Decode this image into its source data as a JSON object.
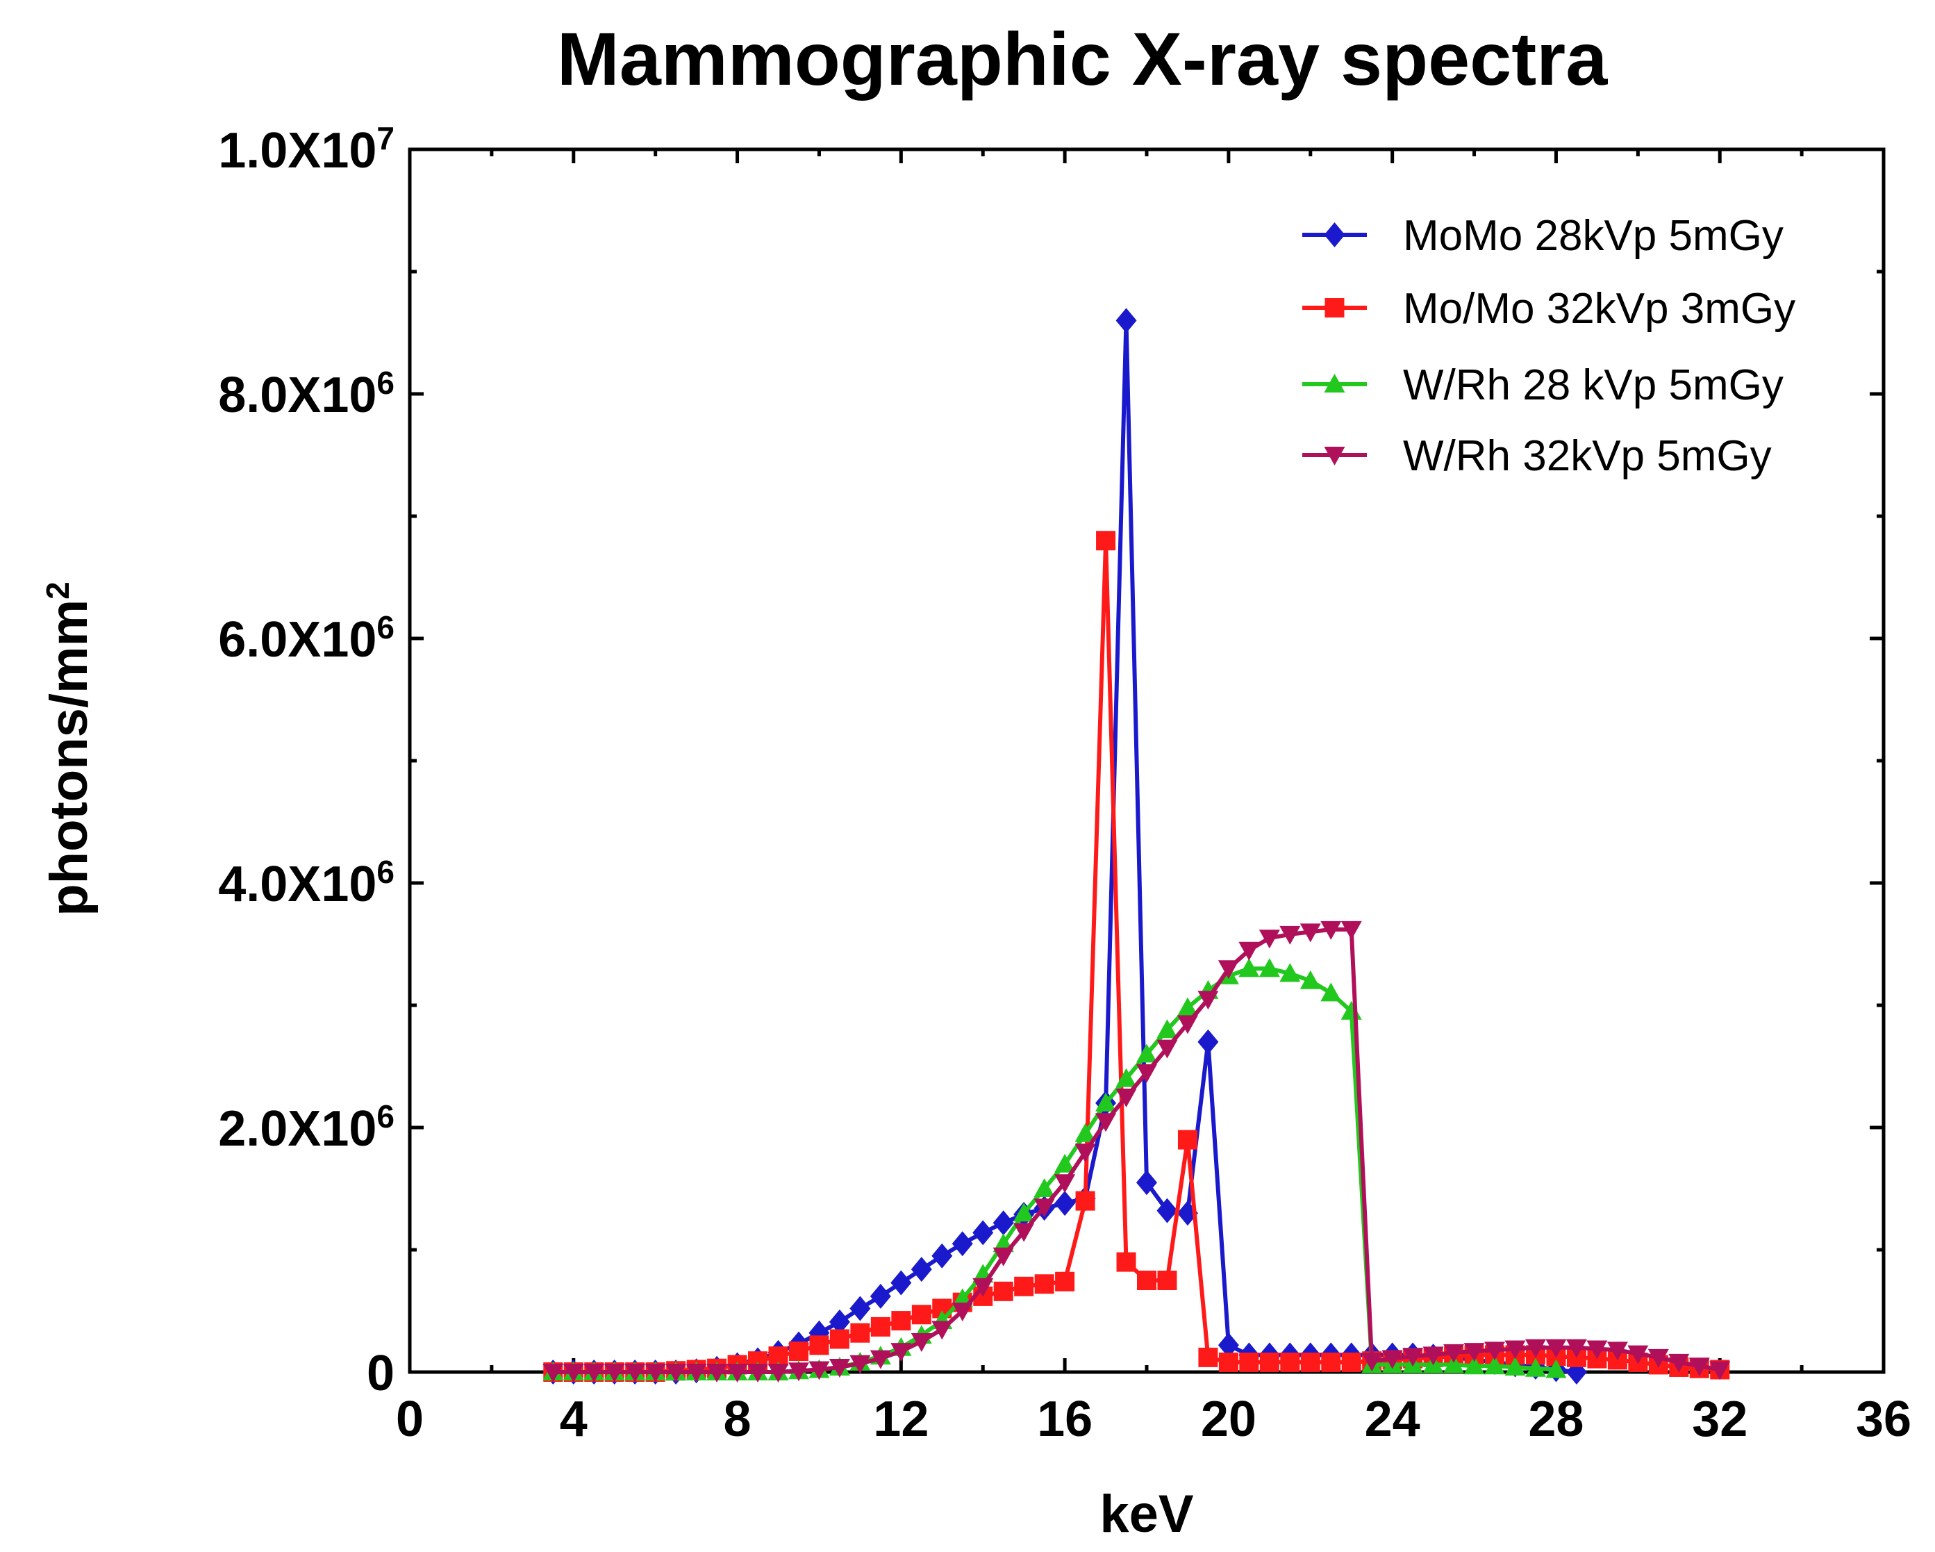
{
  "chart_data": {
    "type": "line",
    "title": "Mammographic X-ray spectra",
    "xlabel": "keV",
    "ylabel": "photons/mm",
    "ylabel_exp": "2",
    "xlim": [
      0,
      36
    ],
    "ylim": [
      0,
      10000000
    ],
    "grid": false,
    "legend_position": "top-right",
    "x_ticks": [
      {
        "value": 0,
        "label": "0"
      },
      {
        "value": 4,
        "label": "4"
      },
      {
        "value": 8,
        "label": "8"
      },
      {
        "value": 12,
        "label": "12"
      },
      {
        "value": 16,
        "label": "16"
      },
      {
        "value": 20,
        "label": "20"
      },
      {
        "value": 24,
        "label": "24"
      },
      {
        "value": 28,
        "label": "28"
      },
      {
        "value": 32,
        "label": "32"
      },
      {
        "value": 36,
        "label": "36"
      }
    ],
    "y_ticks": [
      {
        "value": 0,
        "mant": "0",
        "exp": ""
      },
      {
        "value": 2000000,
        "mant": "2.0X10",
        "exp": "6"
      },
      {
        "value": 4000000,
        "mant": "4.0X10",
        "exp": "6"
      },
      {
        "value": 6000000,
        "mant": "6.0X10",
        "exp": "6"
      },
      {
        "value": 8000000,
        "mant": "8.0X10",
        "exp": "6"
      },
      {
        "value": 10000000,
        "mant": "1.0X10",
        "exp": "7"
      }
    ],
    "series": [
      {
        "name": "MoMo 28kVp 5mGy",
        "color": "#1a1acc",
        "marker": "diamond",
        "x": [
          3.5,
          4,
          4.5,
          5,
          5.5,
          6,
          6.5,
          7,
          7.5,
          8,
          8.5,
          9,
          9.5,
          10,
          10.5,
          11,
          11.5,
          12,
          12.5,
          13,
          13.5,
          14,
          14.5,
          15,
          15.5,
          16,
          16.5,
          17,
          17.5,
          18,
          18.5,
          19,
          19.5,
          20,
          20.5,
          21,
          21.5,
          22,
          22.5,
          23,
          23.5,
          24,
          24.5,
          25,
          25.5,
          26,
          26.5,
          27,
          27.5,
          28,
          28.5
        ],
        "values": [
          0,
          0,
          0,
          0,
          0,
          0,
          0,
          10000,
          30000,
          60000,
          100000,
          160000,
          230000,
          320000,
          410000,
          520000,
          620000,
          730000,
          840000,
          950000,
          1050000,
          1140000,
          1220000,
          1290000,
          1340000,
          1380000,
          1420000,
          2200000,
          8600000,
          1550000,
          1320000,
          1300000,
          2700000,
          220000,
          140000,
          140000,
          140000,
          140000,
          140000,
          140000,
          140000,
          140000,
          140000,
          130000,
          120000,
          100000,
          80000,
          60000,
          40000,
          20000,
          0
        ]
      },
      {
        "name": "Mo/Mo 32kVp 3mGy",
        "color": "#ff1a1a",
        "marker": "square",
        "x": [
          3.5,
          4,
          4.5,
          5,
          5.5,
          6,
          6.5,
          7,
          7.5,
          8,
          8.5,
          9,
          9.5,
          10,
          10.5,
          11,
          11.5,
          12,
          12.5,
          13,
          13.5,
          14,
          14.5,
          15,
          15.5,
          16,
          16.5,
          17,
          17.5,
          18,
          18.5,
          19,
          19.5,
          20,
          20.5,
          21,
          21.5,
          22,
          22.5,
          23,
          23.5,
          24,
          24.5,
          25,
          25.5,
          26,
          26.5,
          27,
          27.5,
          28,
          28.5,
          29,
          29.5,
          30,
          30.5,
          31,
          31.5,
          32
        ],
        "values": [
          0,
          0,
          0,
          0,
          0,
          0,
          10000,
          20000,
          30000,
          60000,
          90000,
          130000,
          170000,
          220000,
          270000,
          320000,
          370000,
          420000,
          470000,
          520000,
          570000,
          620000,
          660000,
          700000,
          720000,
          740000,
          1400000,
          6800000,
          900000,
          750000,
          750000,
          1900000,
          120000,
          80000,
          80000,
          80000,
          80000,
          80000,
          80000,
          80000,
          90000,
          100000,
          110000,
          120000,
          130000,
          140000,
          140000,
          140000,
          140000,
          130000,
          120000,
          110000,
          100000,
          80000,
          60000,
          40000,
          30000,
          20000
        ]
      },
      {
        "name": "W/Rh 28 kVp 5mGy",
        "color": "#22c81e",
        "marker": "triangle-up",
        "x": [
          3.5,
          4,
          4.5,
          5,
          5.5,
          6,
          6.5,
          7,
          7.5,
          8,
          8.5,
          9,
          9.5,
          10,
          10.5,
          11,
          11.5,
          12,
          12.5,
          13,
          13.5,
          14,
          14.5,
          15,
          15.5,
          16,
          16.5,
          17,
          17.5,
          18,
          18.5,
          19,
          19.5,
          20,
          20.5,
          21,
          21.5,
          22,
          22.5,
          23,
          23.5,
          24,
          24.5,
          25,
          25.5,
          26,
          26.5,
          27,
          27.5,
          28
        ],
        "values": [
          0,
          0,
          0,
          0,
          0,
          0,
          0,
          0,
          0,
          0,
          0,
          0,
          10000,
          20000,
          40000,
          80000,
          130000,
          200000,
          300000,
          420000,
          600000,
          800000,
          1050000,
          1300000,
          1500000,
          1700000,
          1950000,
          2200000,
          2400000,
          2600000,
          2800000,
          2980000,
          3120000,
          3240000,
          3300000,
          3300000,
          3260000,
          3200000,
          3100000,
          2950000,
          60000,
          60000,
          60000,
          60000,
          60000,
          50000,
          50000,
          40000,
          30000,
          20000
        ]
      },
      {
        "name": "W/Rh 32kVp 5mGy",
        "color": "#b0105a",
        "marker": "triangle-down",
        "x": [
          3.5,
          4,
          4.5,
          5,
          5.5,
          6,
          6.5,
          7,
          7.5,
          8,
          8.5,
          9,
          9.5,
          10,
          10.5,
          11,
          11.5,
          12,
          12.5,
          13,
          13.5,
          14,
          14.5,
          15,
          15.5,
          16,
          16.5,
          17,
          17.5,
          18,
          18.5,
          19,
          19.5,
          20,
          20.5,
          21,
          21.5,
          22,
          22.5,
          23,
          23.5,
          24,
          24.5,
          25,
          25.5,
          26,
          26.5,
          27,
          27.5,
          28,
          28.5,
          29,
          29.5,
          30,
          30.5,
          31,
          31.5,
          32
        ],
        "values": [
          0,
          0,
          0,
          0,
          0,
          0,
          0,
          0,
          0,
          0,
          0,
          0,
          10000,
          20000,
          40000,
          70000,
          110000,
          170000,
          250000,
          350000,
          500000,
          700000,
          950000,
          1150000,
          1350000,
          1550000,
          1800000,
          2050000,
          2250000,
          2450000,
          2650000,
          2850000,
          3050000,
          3300000,
          3450000,
          3550000,
          3580000,
          3600000,
          3620000,
          3620000,
          90000,
          110000,
          130000,
          140000,
          160000,
          170000,
          180000,
          190000,
          200000,
          200000,
          200000,
          190000,
          180000,
          150000,
          120000,
          80000,
          50000,
          20000
        ]
      }
    ]
  }
}
